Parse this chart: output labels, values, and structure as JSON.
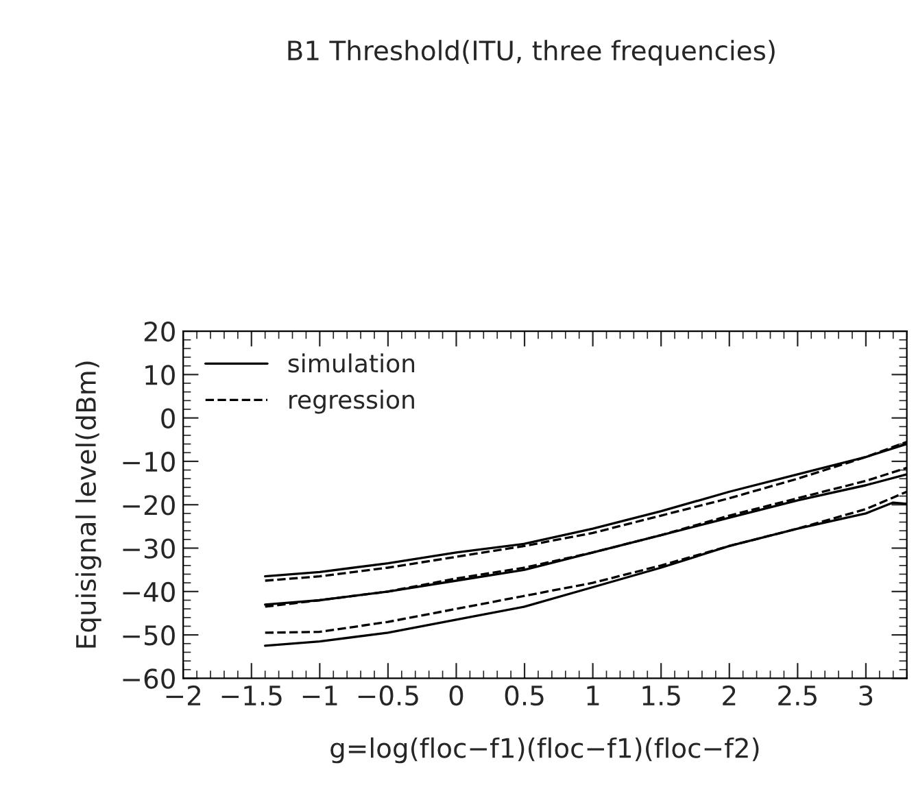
{
  "chart_data": {
    "type": "line",
    "title": "B1 Threshold(ITU, three frequencies)",
    "xlabel": "g=log(floc−f1)(floc−f1)(floc−f2)",
    "ylabel": "Equisignal level(dBm)",
    "xlim": [
      -2,
      3.3
    ],
    "xticks": [
      {
        "value": -2,
        "label": "−2"
      },
      {
        "value": -1.5,
        "label": "−1.5"
      },
      {
        "value": -1,
        "label": "−1"
      },
      {
        "value": -0.5,
        "label": "−0.5"
      },
      0,
      0.5,
      1,
      1.5,
      2,
      2.5,
      3
    ],
    "ylim": [
      -60,
      20
    ],
    "yticks": [
      {
        "value": -60,
        "label": "−60"
      },
      {
        "value": -50,
        "label": "−50"
      },
      {
        "value": -40,
        "label": "−40"
      },
      {
        "value": -30,
        "label": "−30"
      },
      {
        "value": -20,
        "label": "−20"
      },
      {
        "value": -10,
        "label": "−10"
      },
      0,
      10,
      20
    ],
    "legend": "top left",
    "grid": false,
    "marker": "none",
    "series": [
      {
        "name": "simulation",
        "color": "#000000",
        "line_style": "solid",
        "x": [
          -1.4,
          -1,
          -0.5,
          0,
          0.5,
          1,
          1.5,
          2,
          2.5,
          3,
          3.3
        ],
        "values": [
          -36.5,
          -35.5,
          -33.5,
          -31,
          -29,
          -25.5,
          -21.5,
          -17,
          -13,
          -9,
          -6
        ]
      },
      {
        "color": "#000000",
        "line_style": "solid",
        "x": [
          -1.4,
          -1,
          -0.5,
          0,
          0.5,
          1,
          1.5,
          2,
          2.5,
          3,
          3.3
        ],
        "values": [
          -43,
          -42,
          -40,
          -37.5,
          -35,
          -31,
          -27,
          -23,
          -19,
          -15.5,
          -13
        ]
      },
      {
        "color": "#000000",
        "line_style": "solid",
        "x": [
          -1.4,
          -1,
          -0.5,
          0,
          0.5,
          1,
          1.5,
          2,
          2.5,
          3,
          3.2,
          3.3
        ],
        "values": [
          -52.5,
          -51.5,
          -49.5,
          -46.5,
          -43.5,
          -39,
          -34.5,
          -29.5,
          -25.5,
          -22,
          -19.5,
          -19.8
        ]
      },
      {
        "name": "regression",
        "color": "#000000",
        "line_style": "dashed",
        "x": [
          -1.4,
          -1,
          -0.5,
          0,
          0.5,
          1,
          1.5,
          2,
          2.5,
          3,
          3.3
        ],
        "values": [
          -37.5,
          -36.5,
          -34.5,
          -32,
          -29.5,
          -26.5,
          -22.5,
          -18.5,
          -14,
          -9,
          -5.5
        ]
      },
      {
        "color": "#000000",
        "line_style": "dashed",
        "x": [
          -1.4,
          -1,
          -0.5,
          0,
          0.5,
          1,
          1.5,
          2,
          2.5,
          3,
          3.3
        ],
        "values": [
          -43.5,
          -42,
          -40,
          -37,
          -34.5,
          -31,
          -27,
          -22.5,
          -18.5,
          -14.5,
          -11.5
        ]
      },
      {
        "color": "#000000",
        "line_style": "dashed",
        "x": [
          -1.4,
          -1,
          -0.5,
          0,
          0.5,
          1,
          1.5,
          2,
          2.5,
          3,
          3.3
        ],
        "values": [
          -49.5,
          -49.3,
          -47,
          -44,
          -41,
          -38,
          -34,
          -29.5,
          -25.5,
          -21,
          -17
        ]
      }
    ]
  }
}
